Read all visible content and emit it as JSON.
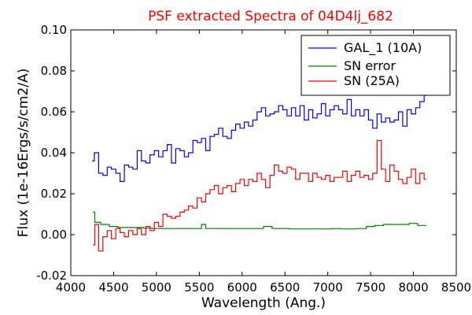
{
  "chart_data": {
    "type": "line",
    "title": "PSF extracted Spectra of 04D4lj_682",
    "title_color": "#ff0000",
    "xlabel": "Wavelength (Ang.)",
    "ylabel": "Flux (1e-16Ergs/s/cm2/A)",
    "xlim": [
      4000,
      8500
    ],
    "ylim": [
      -0.02,
      0.1
    ],
    "x_ticks": [
      "4000",
      "4500",
      "5000",
      "5500",
      "6000",
      "6500",
      "7000",
      "7500",
      "8000",
      "8500"
    ],
    "y_ticks": [
      "-0.02",
      "0.00",
      "0.02",
      "0.04",
      "0.06",
      "0.08",
      "0.10"
    ],
    "grid": false,
    "legend_position": "top-right",
    "series": [
      {
        "name": "GAL_1 (10A)",
        "color": "#0000ff",
        "x": [
          4250,
          4300,
          4350,
          4400,
          4450,
          4500,
          4550,
          4600,
          4650,
          4700,
          4750,
          4800,
          4850,
          4900,
          4950,
          5000,
          5050,
          5100,
          5150,
          5200,
          5250,
          5300,
          5350,
          5400,
          5450,
          5500,
          5550,
          5600,
          5650,
          5700,
          5750,
          5800,
          5850,
          5900,
          5950,
          6000,
          6050,
          6100,
          6150,
          6200,
          6250,
          6300,
          6350,
          6400,
          6450,
          6500,
          6550,
          6600,
          6650,
          6700,
          6750,
          6800,
          6850,
          6900,
          6950,
          7000,
          7050,
          7100,
          7150,
          7200,
          7250,
          7300,
          7350,
          7400,
          7450,
          7500,
          7550,
          7600,
          7650,
          7700,
          7750,
          7800,
          7850,
          7900,
          7950,
          8000,
          8050,
          8100,
          8150
        ],
        "y": [
          0.036,
          0.04,
          0.03,
          0.029,
          0.033,
          0.032,
          0.03,
          0.026,
          0.034,
          0.033,
          0.032,
          0.041,
          0.036,
          0.035,
          0.039,
          0.041,
          0.038,
          0.041,
          0.044,
          0.035,
          0.042,
          0.041,
          0.038,
          0.04,
          0.046,
          0.045,
          0.047,
          0.041,
          0.048,
          0.049,
          0.052,
          0.048,
          0.047,
          0.051,
          0.054,
          0.052,
          0.055,
          0.053,
          0.056,
          0.06,
          0.062,
          0.058,
          0.059,
          0.06,
          0.063,
          0.061,
          0.058,
          0.062,
          0.058,
          0.063,
          0.056,
          0.061,
          0.057,
          0.059,
          0.064,
          0.058,
          0.061,
          0.063,
          0.061,
          0.059,
          0.066,
          0.058,
          0.061,
          0.058,
          0.061,
          0.056,
          0.052,
          0.059,
          0.055,
          0.057,
          0.055,
          0.056,
          0.06,
          0.053,
          0.061,
          0.059,
          0.062,
          0.065,
          0.068
        ]
      },
      {
        "name": "SN error",
        "color": "#008000",
        "x": [
          4260,
          4300,
          4400,
          4500,
          4600,
          4700,
          4800,
          4900,
          5000,
          5100,
          5200,
          5300,
          5400,
          5500,
          5550,
          5600,
          5700,
          5800,
          5900,
          6000,
          6100,
          6200,
          6300,
          6400,
          6500,
          6600,
          6700,
          6800,
          6900,
          7000,
          7100,
          7200,
          7300,
          7400,
          7500,
          7600,
          7700,
          7800,
          7900,
          8000,
          8100,
          8150
        ],
        "y": [
          0.011,
          0.006,
          0.005,
          0.004,
          0.0035,
          0.0035,
          0.0035,
          0.0032,
          0.003,
          0.003,
          0.003,
          0.003,
          0.003,
          0.003,
          0.005,
          0.003,
          0.003,
          0.003,
          0.003,
          0.003,
          0.003,
          0.003,
          0.004,
          0.003,
          0.003,
          0.0028,
          0.0028,
          0.0028,
          0.0028,
          0.0028,
          0.003,
          0.0028,
          0.0028,
          0.003,
          0.004,
          0.0045,
          0.005,
          0.005,
          0.005,
          0.0055,
          0.0045,
          0.0045
        ]
      },
      {
        "name": "SN (25A)",
        "color": "#ff0000",
        "x": [
          4260,
          4300,
          4350,
          4400,
          4450,
          4500,
          4550,
          4600,
          4650,
          4700,
          4750,
          4800,
          4850,
          4900,
          4950,
          5000,
          5050,
          5100,
          5150,
          5200,
          5250,
          5300,
          5350,
          5400,
          5450,
          5500,
          5550,
          5600,
          5650,
          5700,
          5750,
          5800,
          5850,
          5900,
          5950,
          6000,
          6050,
          6100,
          6150,
          6200,
          6250,
          6300,
          6350,
          6400,
          6450,
          6500,
          6550,
          6600,
          6650,
          6700,
          6750,
          6800,
          6850,
          6900,
          6950,
          7000,
          7050,
          7100,
          7150,
          7200,
          7250,
          7300,
          7350,
          7400,
          7450,
          7500,
          7550,
          7600,
          7650,
          7700,
          7750,
          7800,
          7850,
          7900,
          7950,
          8000,
          8050,
          8100,
          8150
        ],
        "y": [
          -0.005,
          0.005,
          -0.008,
          -0.001,
          0.002,
          -0.002,
          0.003,
          0.001,
          -0.001,
          0.002,
          0.0,
          0.003,
          0.0,
          0.004,
          0.002,
          0.006,
          0.004,
          0.01,
          0.009,
          0.008,
          0.009,
          0.011,
          0.012,
          0.014,
          0.013,
          0.018,
          0.016,
          0.02,
          0.022,
          0.024,
          0.02,
          0.023,
          0.024,
          0.021,
          0.025,
          0.027,
          0.024,
          0.027,
          0.026,
          0.03,
          0.027,
          0.023,
          0.029,
          0.034,
          0.031,
          0.03,
          0.033,
          0.032,
          0.027,
          0.03,
          0.03,
          0.026,
          0.03,
          0.028,
          0.027,
          0.029,
          0.026,
          0.028,
          0.028,
          0.031,
          0.026,
          0.029,
          0.031,
          0.028,
          0.029,
          0.027,
          0.03,
          0.046,
          0.032,
          0.026,
          0.034,
          0.031,
          0.027,
          0.025,
          0.028,
          0.032,
          0.025,
          0.03,
          0.027
        ]
      }
    ]
  }
}
